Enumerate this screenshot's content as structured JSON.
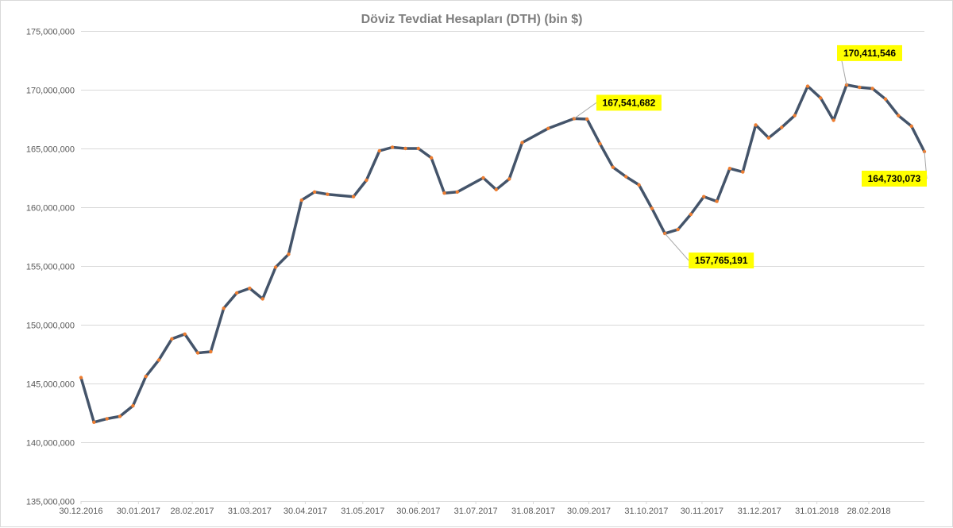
{
  "chart_data": {
    "type": "line",
    "title": "Döviz Tevdiat Hesapları (DTH) (bin $)",
    "xlabel": "",
    "ylabel": "",
    "ylim": [
      135000000,
      175000000
    ],
    "y_ticks": [
      135000000,
      140000000,
      145000000,
      150000000,
      155000000,
      160000000,
      165000000,
      170000000,
      175000000
    ],
    "y_tick_labels": [
      "135,000,000",
      "140,000,000",
      "145,000,000",
      "150,000,000",
      "155,000,000",
      "160,000,000",
      "165,000,000",
      "170,000,000",
      "175,000,000"
    ],
    "x_range": [
      "2016-12-30",
      "2018-03-30"
    ],
    "x_ticks": [
      "2016-12-30",
      "2017-01-30",
      "2017-02-28",
      "2017-03-31",
      "2017-04-30",
      "2017-05-31",
      "2017-06-30",
      "2017-07-31",
      "2017-08-31",
      "2017-09-30",
      "2017-10-31",
      "2017-11-30",
      "2017-12-31",
      "2018-01-31",
      "2018-02-28"
    ],
    "x_tick_labels": [
      "30.12.2016",
      "30.01.2017",
      "28.02.2017",
      "31.03.2017",
      "30.04.2017",
      "31.05.2017",
      "30.06.2017",
      "31.07.2017",
      "31.08.2017",
      "30.09.2017",
      "31.10.2017",
      "30.11.2017",
      "31.12.2017",
      "31.01.2018",
      "28.02.2018"
    ],
    "grid": true,
    "legend": "none",
    "line_color": "#44546a",
    "marker_color": "#ed7d31",
    "label_bg": "#ffff00",
    "series": [
      {
        "x": [
          "2016-12-30",
          "2017-01-06",
          "2017-01-13",
          "2017-01-20",
          "2017-01-27",
          "2017-02-03",
          "2017-02-10",
          "2017-02-17",
          "2017-02-24",
          "2017-03-03",
          "2017-03-10",
          "2017-03-17",
          "2017-03-24",
          "2017-03-31",
          "2017-04-07",
          "2017-04-14",
          "2017-04-21",
          "2017-04-28",
          "2017-05-05",
          "2017-05-12",
          "2017-05-26",
          "2017-06-02",
          "2017-06-09",
          "2017-06-16",
          "2017-06-23",
          "2017-06-30",
          "2017-07-07",
          "2017-07-14",
          "2017-07-21",
          "2017-08-04",
          "2017-08-11",
          "2017-08-18",
          "2017-08-25",
          "2017-09-08",
          "2017-09-22",
          "2017-09-29",
          "2017-10-06",
          "2017-10-13",
          "2017-10-20",
          "2017-10-27",
          "2017-11-03",
          "2017-11-10",
          "2017-11-17",
          "2017-11-24",
          "2017-12-01",
          "2017-12-08",
          "2017-12-15",
          "2017-12-22",
          "2017-12-29",
          "2018-01-05",
          "2018-01-12",
          "2018-01-19",
          "2018-01-26",
          "2018-02-02",
          "2018-02-09",
          "2018-02-16",
          "2018-02-23",
          "2018-03-02",
          "2018-03-09",
          "2018-03-16",
          "2018-03-23",
          "2018-03-30"
        ],
        "values": [
          145500000,
          141700000,
          142000000,
          142200000,
          143100000,
          145600000,
          147000000,
          148800000,
          149200000,
          147600000,
          147700000,
          151400000,
          152700000,
          153100000,
          152200000,
          154900000,
          156000000,
          160600000,
          161300000,
          161100000,
          160900000,
          162300000,
          164800000,
          165100000,
          165000000,
          165000000,
          164200000,
          161200000,
          161300000,
          162500000,
          161500000,
          162400000,
          165500000,
          166700000,
          167541682,
          167500000,
          165400000,
          163400000,
          162600000,
          161900000,
          159900000,
          157765191,
          158100000,
          159400000,
          160900000,
          160500000,
          163300000,
          163000000,
          167000000,
          165900000,
          166800000,
          167800000,
          170300000,
          169300000,
          167400000,
          170411546,
          170200000,
          170100000,
          169200000,
          167800000,
          166900000,
          164730073
        ]
      }
    ],
    "annotations": [
      {
        "x": "2017-09-22",
        "value": 167541682,
        "label": "167,541,682"
      },
      {
        "x": "2017-11-10",
        "value": 157765191,
        "label": "157,765,191"
      },
      {
        "x": "2018-02-16",
        "value": 170411546,
        "label": "170,411,546"
      },
      {
        "x": "2018-03-30",
        "value": 164730073,
        "label": "164,730,073"
      }
    ]
  }
}
